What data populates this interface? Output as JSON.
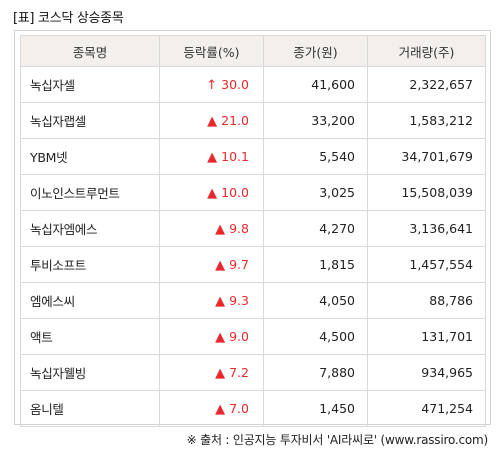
{
  "title": "[표] 코스닥 상승종목",
  "headers": [
    "종목명",
    "등락률(%)",
    "종가(원)",
    "거래량(주)"
  ],
  "rows": [
    {
      "name": "녹십자셀",
      "arrow": "↑",
      "rate": "30.0",
      "price": "41,600",
      "volume": "2,322,657"
    },
    {
      "name": "녹십자랩셀",
      "arrow": "▲",
      "rate": "21.0",
      "price": "33,200",
      "volume": "1,583,212"
    },
    {
      "name": "YBM넷",
      "arrow": "▲",
      "rate": "10.1",
      "price": "5,540",
      "volume": "34,701,679"
    },
    {
      "name": "이노인스트루먼트",
      "arrow": "▲",
      "rate": "10.0",
      "price": "3,025",
      "volume": "15,508,039"
    },
    {
      "name": "녹십자엠에스",
      "arrow": "▲",
      "rate": "9.8",
      "price": "4,270",
      "volume": "3,136,641"
    },
    {
      "name": "투비소프트",
      "arrow": "▲",
      "rate": "9.7",
      "price": "1,815",
      "volume": "1,457,554"
    },
    {
      "name": "엠에스씨",
      "arrow": "▲",
      "rate": "9.3",
      "price": "4,050",
      "volume": "88,786"
    },
    {
      "name": "액트",
      "arrow": "▲",
      "rate": "9.0",
      "price": "4,500",
      "volume": "131,701"
    },
    {
      "name": "녹십자웰빙",
      "arrow": "▲",
      "rate": "7.2",
      "price": "7,880",
      "volume": "934,965"
    },
    {
      "name": "옴니텔",
      "arrow": "▲",
      "rate": "7.0",
      "price": "1,450",
      "volume": "471,254"
    }
  ],
  "source": "※ 출처 : 인공지능 투자비서 'AI라씨로' (www.rassiro.com)",
  "colors": {
    "up": "#e8282b",
    "header_bg": "#f2efec",
    "border": "#d9d9d9"
  }
}
